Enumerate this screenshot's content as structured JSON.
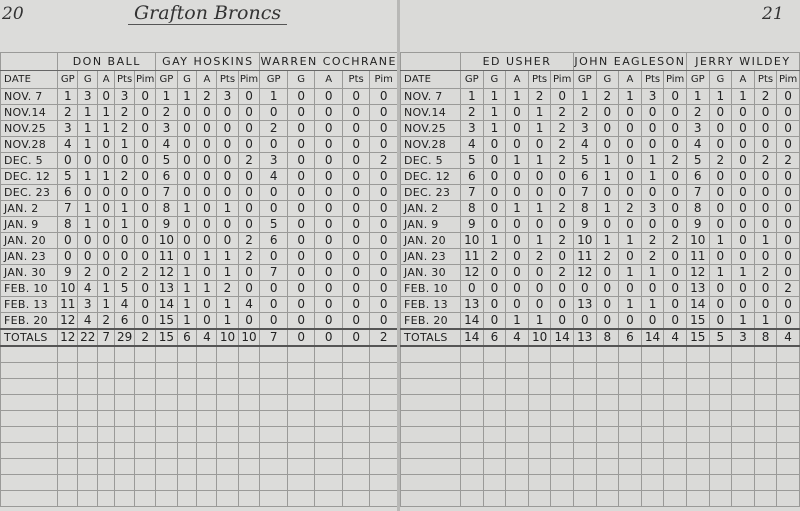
{
  "title": "Grafton Broncs",
  "page_numbers": {
    "left": "20",
    "right": "21"
  },
  "date_label": "DATE",
  "stat_headers": [
    "GP",
    "G",
    "A",
    "Pts",
    "Pim"
  ],
  "dates": [
    "NOV. 7",
    "NOV.14",
    "NOV.25",
    "NOV.28",
    "DEC. 5",
    "DEC. 12",
    "DEC. 23",
    "JAN. 2",
    "JAN. 9",
    "JAN. 20",
    "JAN. 23",
    "JAN. 30",
    "FEB. 10",
    "FEB. 13",
    "FEB. 20"
  ],
  "totals_label": "TOTALS",
  "left_page": {
    "players": [
      {
        "name": "Don Ball",
        "rows": [
          [
            1,
            3,
            0,
            3,
            0
          ],
          [
            2,
            1,
            1,
            2,
            0
          ],
          [
            3,
            1,
            1,
            2,
            0
          ],
          [
            4,
            1,
            0,
            1,
            0
          ],
          [
            0,
            0,
            0,
            0,
            0
          ],
          [
            5,
            1,
            1,
            2,
            0
          ],
          [
            6,
            0,
            0,
            0,
            0
          ],
          [
            7,
            1,
            0,
            1,
            0
          ],
          [
            8,
            1,
            0,
            1,
            0
          ],
          [
            0,
            0,
            0,
            0,
            0
          ],
          [
            0,
            0,
            0,
            0,
            0
          ],
          [
            9,
            2,
            0,
            2,
            2
          ],
          [
            10,
            4,
            1,
            5,
            0
          ],
          [
            11,
            3,
            1,
            4,
            0
          ],
          [
            12,
            4,
            2,
            6,
            0
          ]
        ],
        "totals": [
          12,
          22,
          7,
          29,
          2
        ]
      },
      {
        "name": "Gay Hoskins",
        "rows": [
          [
            1,
            1,
            2,
            3,
            0
          ],
          [
            2,
            0,
            0,
            0,
            0
          ],
          [
            3,
            0,
            0,
            0,
            0
          ],
          [
            4,
            0,
            0,
            0,
            0
          ],
          [
            5,
            0,
            0,
            0,
            2
          ],
          [
            6,
            0,
            0,
            0,
            0
          ],
          [
            7,
            0,
            0,
            0,
            0
          ],
          [
            8,
            1,
            0,
            1,
            0
          ],
          [
            9,
            0,
            0,
            0,
            0
          ],
          [
            10,
            0,
            0,
            0,
            2
          ],
          [
            11,
            0,
            1,
            1,
            2
          ],
          [
            12,
            1,
            0,
            1,
            0
          ],
          [
            13,
            1,
            1,
            2,
            0
          ],
          [
            14,
            1,
            0,
            1,
            4
          ],
          [
            15,
            1,
            0,
            1,
            0
          ]
        ],
        "totals": [
          15,
          6,
          4,
          10,
          10
        ]
      },
      {
        "name": "Warren Cochrane",
        "rows": [
          [
            1,
            0,
            0,
            0,
            0
          ],
          [
            0,
            0,
            0,
            0,
            0
          ],
          [
            2,
            0,
            0,
            0,
            0
          ],
          [
            0,
            0,
            0,
            0,
            0
          ],
          [
            3,
            0,
            0,
            0,
            2
          ],
          [
            4,
            0,
            0,
            0,
            0
          ],
          [
            0,
            0,
            0,
            0,
            0
          ],
          [
            0,
            0,
            0,
            0,
            0
          ],
          [
            5,
            0,
            0,
            0,
            0
          ],
          [
            6,
            0,
            0,
            0,
            0
          ],
          [
            0,
            0,
            0,
            0,
            0
          ],
          [
            7,
            0,
            0,
            0,
            0
          ],
          [
            0,
            0,
            0,
            0,
            0
          ],
          [
            0,
            0,
            0,
            0,
            0
          ],
          [
            0,
            0,
            0,
            0,
            0
          ]
        ],
        "totals": [
          7,
          0,
          0,
          0,
          2
        ]
      }
    ]
  },
  "right_page": {
    "players": [
      {
        "name": "Ed Usher",
        "rows": [
          [
            1,
            1,
            1,
            2,
            0
          ],
          [
            2,
            1,
            0,
            1,
            2
          ],
          [
            3,
            1,
            0,
            1,
            2
          ],
          [
            4,
            0,
            0,
            0,
            2
          ],
          [
            5,
            0,
            1,
            1,
            2
          ],
          [
            6,
            0,
            0,
            0,
            0
          ],
          [
            7,
            0,
            0,
            0,
            0
          ],
          [
            8,
            0,
            1,
            1,
            2
          ],
          [
            9,
            0,
            0,
            0,
            0
          ],
          [
            10,
            1,
            0,
            1,
            2
          ],
          [
            11,
            2,
            0,
            2,
            0
          ],
          [
            12,
            0,
            0,
            0,
            2
          ],
          [
            0,
            0,
            0,
            0,
            0
          ],
          [
            13,
            0,
            0,
            0,
            0
          ],
          [
            14,
            0,
            1,
            1,
            0
          ]
        ],
        "totals": [
          14,
          6,
          4,
          10,
          14
        ]
      },
      {
        "name": "John Eagleson",
        "rows": [
          [
            1,
            2,
            1,
            3,
            0
          ],
          [
            2,
            0,
            0,
            0,
            0
          ],
          [
            3,
            0,
            0,
            0,
            0
          ],
          [
            4,
            0,
            0,
            0,
            0
          ],
          [
            5,
            1,
            0,
            1,
            2
          ],
          [
            6,
            1,
            0,
            1,
            0
          ],
          [
            7,
            0,
            0,
            0,
            0
          ],
          [
            8,
            1,
            2,
            3,
            0
          ],
          [
            9,
            0,
            0,
            0,
            0
          ],
          [
            10,
            1,
            1,
            2,
            2
          ],
          [
            11,
            2,
            0,
            2,
            0
          ],
          [
            12,
            0,
            1,
            1,
            0
          ],
          [
            0,
            0,
            0,
            0,
            0
          ],
          [
            13,
            0,
            1,
            1,
            0
          ],
          [
            0,
            0,
            0,
            0,
            0
          ]
        ],
        "totals": [
          13,
          8,
          6,
          14,
          4
        ]
      },
      {
        "name": "Jerry Wildey",
        "rows": [
          [
            1,
            1,
            1,
            2,
            0
          ],
          [
            2,
            0,
            0,
            0,
            0
          ],
          [
            3,
            0,
            0,
            0,
            0
          ],
          [
            4,
            0,
            0,
            0,
            0
          ],
          [
            5,
            2,
            0,
            2,
            2
          ],
          [
            6,
            0,
            0,
            0,
            0
          ],
          [
            7,
            0,
            0,
            0,
            0
          ],
          [
            8,
            0,
            0,
            0,
            0
          ],
          [
            9,
            0,
            0,
            0,
            0
          ],
          [
            10,
            1,
            0,
            1,
            0
          ],
          [
            11,
            0,
            0,
            0,
            0
          ],
          [
            12,
            1,
            1,
            2,
            0
          ],
          [
            13,
            0,
            0,
            0,
            2
          ],
          [
            14,
            0,
            0,
            0,
            0
          ],
          [
            15,
            0,
            1,
            1,
            0
          ]
        ],
        "totals": [
          15,
          5,
          3,
          8,
          4
        ]
      }
    ]
  }
}
